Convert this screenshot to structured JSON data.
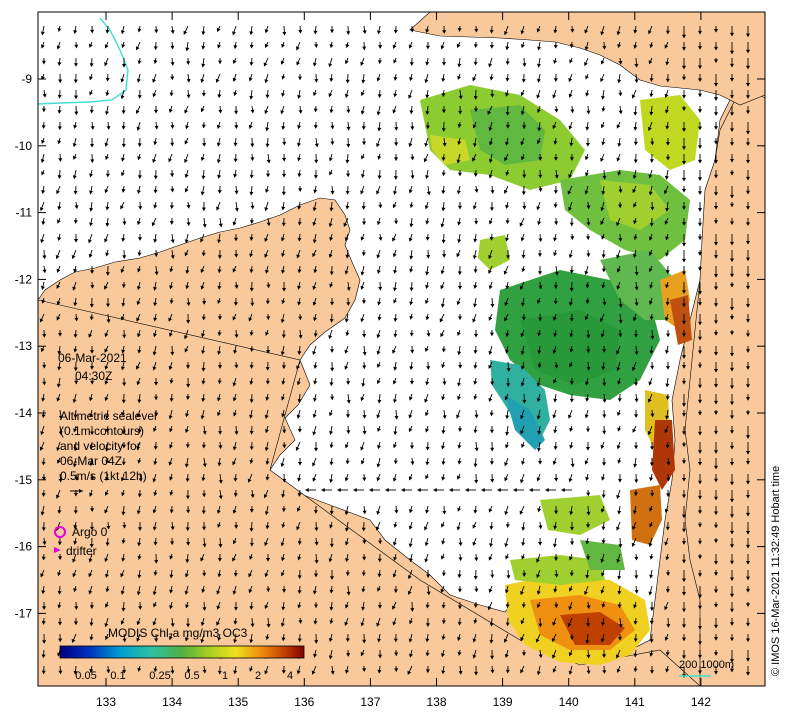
{
  "map": {
    "date": "06-Mar-2021",
    "time": "04:30Z",
    "legend_lines": [
      "Altimetric sealevel",
      "(0.1m contours)",
      "and velocity for",
      "06-Mar 04Z",
      "0.5m/s (1kt 12h)"
    ],
    "argo_label": "Argo 0",
    "drifter_label": "drifter",
    "colorbar_title": "MODIS Chl-a mg/m3 OC3",
    "colorbar_ticks": [
      "0.05",
      "0.1",
      "0.25",
      "0.5",
      "1",
      "2",
      "4"
    ],
    "scale_label": "200  1000m",
    "credit": "© IMOS 16-Mar-2021 11:32:49 Hobart time",
    "x_ticks": [
      "133",
      "134",
      "135",
      "136",
      "137",
      "138",
      "139",
      "140",
      "141",
      "142"
    ],
    "y_ticks": [
      "-9",
      "-10",
      "-11",
      "-12",
      "-13",
      "-14",
      "-15",
      "-16",
      "-17"
    ],
    "colors": {
      "land": "#f9c99b",
      "frame": "#000000",
      "bathy_200": "#40e0d0",
      "argo": "#e000e0",
      "drifter": "#e000e0"
    }
  }
}
